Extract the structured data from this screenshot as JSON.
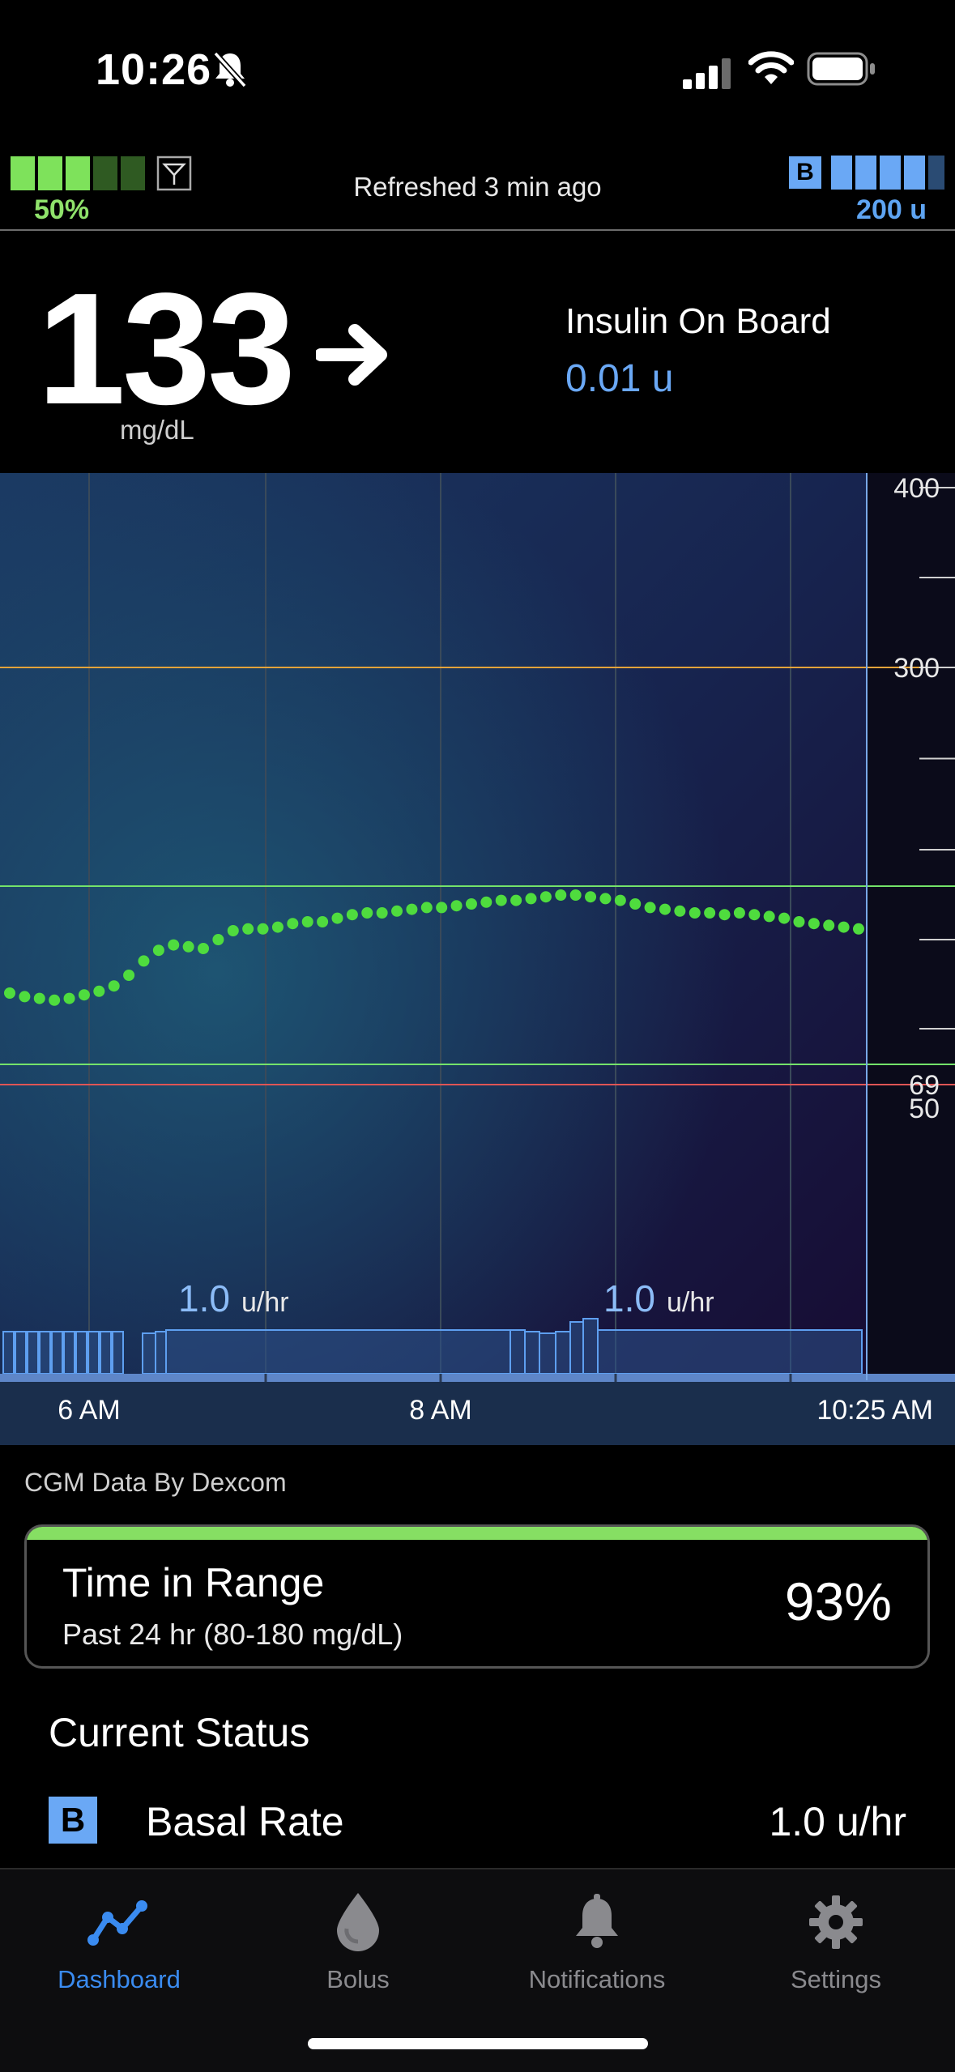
{
  "status_bar": {
    "time": "10:26"
  },
  "header": {
    "pump_battery_percent": "50%",
    "pump_battery_level": 0.5,
    "refreshed_text": "Refreshed 3 min ago",
    "basal_badge": "B",
    "reservoir_units": "200 u"
  },
  "reading": {
    "bg_value": "133",
    "bg_units": "mg/dL",
    "trend": "arrow-right-icon",
    "iob_label": "Insulin On Board",
    "iob_value": "0.01 u"
  },
  "chart_data": {
    "type": "scatter",
    "y_axis_labels": [
      "400",
      "300",
      "69",
      "50"
    ],
    "ylim": [
      40,
      400
    ],
    "x_labels": [
      "6 AM",
      "8 AM",
      "10:25 AM"
    ],
    "glucose_series": [
      120,
      118,
      117,
      116,
      117,
      119,
      121,
      124,
      130,
      138,
      144,
      147,
      146,
      145,
      150,
      155,
      156,
      156,
      157,
      159,
      160,
      160,
      162,
      164,
      165,
      165,
      166,
      167,
      168,
      168,
      169,
      170,
      171,
      172,
      172,
      173,
      174,
      175,
      175,
      174,
      173,
      172,
      170,
      168,
      167,
      166,
      165,
      165,
      164,
      165,
      164,
      163,
      162,
      160,
      159,
      158,
      157,
      156
    ],
    "thresholds": {
      "high": 300,
      "target_high": 180,
      "target_low": 80,
      "low": 69
    },
    "basal_labels": [
      {
        "value": "1.0",
        "unit": "u/hr"
      },
      {
        "value": "1.0",
        "unit": "u/hr"
      }
    ],
    "colors": {
      "glucose": "#4fdc3e",
      "high": "#e3a33a",
      "target": "#74e36a",
      "low": "#e05555",
      "basal": "#5e9ff0"
    }
  },
  "cgm_source": "CGM Data By Dexcom",
  "time_in_range": {
    "title": "Time in Range",
    "subtitle": "Past 24 hr (80-180 mg/dL)",
    "value": "93%"
  },
  "current_status": {
    "title": "Current Status",
    "basal_badge": "B",
    "basal_label": "Basal Rate",
    "basal_value": "1.0 u/hr"
  },
  "tabs": [
    {
      "label": "Dashboard",
      "icon": "chart-line-icon",
      "active": true
    },
    {
      "label": "Bolus",
      "icon": "drop-icon",
      "active": false
    },
    {
      "label": "Notifications",
      "icon": "bell-icon",
      "active": false
    },
    {
      "label": "Settings",
      "icon": "gear-icon",
      "active": false
    }
  ]
}
